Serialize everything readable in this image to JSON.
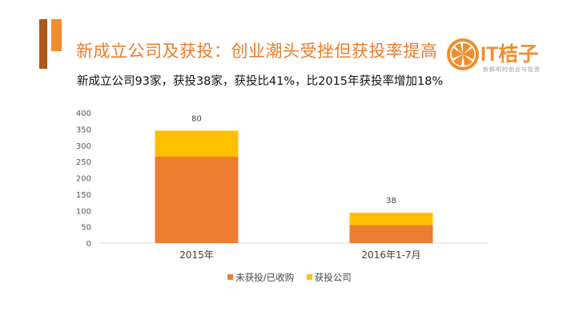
{
  "header": {
    "title": "新成立公司及获投：创业潮头受挫但获投率提高",
    "subtitle": "新成立公司93家，获投38家，获投比41%，比2015年获投率增加18%"
  },
  "logo": {
    "text": "IT桔子",
    "tagline": "新鲜明的创业与投资"
  },
  "colors": {
    "title": "#ec7d2f",
    "series_not_funded": "#ed7d31",
    "series_funded": "#ffc000",
    "accent_dark": "#ad5a1c",
    "accent_light": "#f08d2e"
  },
  "chart_data": {
    "type": "bar",
    "stacked": true,
    "categories": [
      "2015年",
      "2016年1-7月"
    ],
    "series": [
      {
        "name": "未获投/已收购",
        "values": [
          265,
          55
        ]
      },
      {
        "name": "获投公司",
        "values": [
          80,
          38
        ]
      }
    ],
    "data_labels": [
      "80",
      "38"
    ],
    "y_ticks": [
      0,
      50,
      100,
      150,
      200,
      250,
      300,
      350,
      400
    ],
    "ylim": [
      0,
      400
    ],
    "grid": false,
    "legend": "bottom"
  }
}
